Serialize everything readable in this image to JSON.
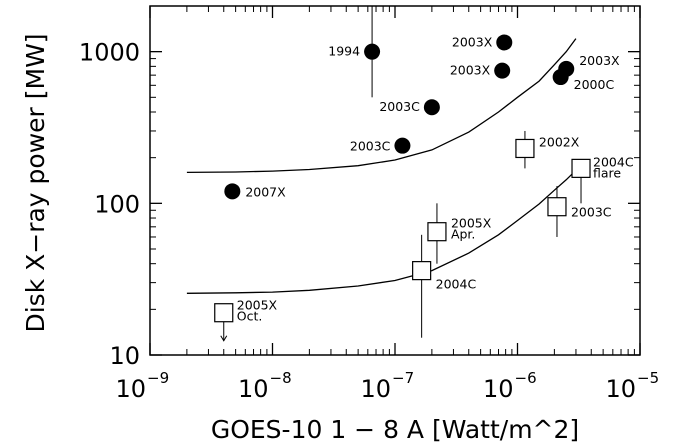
{
  "chart_data": {
    "type": "scatter",
    "title": "",
    "xlabel": "GOES-10 1 − 8 A [Watt/m^2]",
    "ylabel": "Disk X−ray power [MW]",
    "xscale": "log",
    "yscale": "log",
    "xlim": [
      1e-09,
      1e-05
    ],
    "ylim": [
      10,
      2000
    ],
    "x_ticks": [
      {
        "base": "10",
        "exp": "−9",
        "value": 1e-09
      },
      {
        "base": "10",
        "exp": "−8",
        "value": 1e-08
      },
      {
        "base": "10",
        "exp": "−7",
        "value": 1e-07
      },
      {
        "base": "10",
        "exp": "−6",
        "value": 1e-06
      },
      {
        "base": "10",
        "exp": "−5",
        "value": 1e-05
      }
    ],
    "y_ticks": [
      {
        "label": "10",
        "value": 10
      },
      {
        "label": "100",
        "value": 100
      },
      {
        "label": "1000",
        "value": 1000
      }
    ],
    "grid": false,
    "series": [
      {
        "marker": "filled-circle",
        "points": [
          {
            "x": 6.5e-08,
            "y": 1000,
            "label": "1994",
            "y_err": [
              500,
              2000
            ]
          },
          {
            "x": 7.8e-07,
            "y": 1150,
            "label": "2003X"
          },
          {
            "x": 7.5e-07,
            "y": 750,
            "label": "2003X"
          },
          {
            "x": 2.5e-06,
            "y": 770,
            "label": "2003X"
          },
          {
            "x": 2.25e-06,
            "y": 680,
            "label": "2000C"
          },
          {
            "x": 2e-07,
            "y": 430,
            "label": "2003C"
          },
          {
            "x": 1.15e-07,
            "y": 240,
            "label": "2003C"
          },
          {
            "x": 4.7e-09,
            "y": 120,
            "label": "2007X"
          }
        ]
      },
      {
        "marker": "open-square",
        "points": [
          {
            "x": 1.15e-06,
            "y": 230,
            "label": "2002X",
            "y_err": [
              170,
              300
            ]
          },
          {
            "x": 3.3e-06,
            "y": 170,
            "label": "2004C",
            "label2": "flare",
            "y_err": [
              100,
              170
            ]
          },
          {
            "x": 2.1e-06,
            "y": 95,
            "label": "2003C",
            "y_err": [
              60,
              130
            ]
          },
          {
            "x": 2.2e-07,
            "y": 65,
            "label": "2005X",
            "label2": "Apr.",
            "y_err": [
              40,
              100
            ]
          },
          {
            "x": 1.65e-07,
            "y": 36,
            "label": "2004C",
            "y_err": [
              13,
              62
            ]
          },
          {
            "x": 4e-09,
            "y": 19,
            "label": "2005X",
            "label2": "Oct.",
            "upper_limit": true
          }
        ]
      }
    ],
    "curves": [
      {
        "x": [
          2e-09,
          5e-09,
          1e-08,
          2e-08,
          5e-08,
          1e-07,
          2e-07,
          4e-07,
          7e-07,
          1e-06,
          1.5e-06,
          2e-06,
          2.5e-06,
          3e-06
        ],
        "y": [
          160,
          161,
          163,
          167,
          177,
          193,
          225,
          295,
          400,
          500,
          640,
          820,
          1000,
          1220
        ]
      },
      {
        "x": [
          2e-09,
          5e-09,
          1e-08,
          2e-08,
          5e-08,
          1e-07,
          2e-07,
          4e-07,
          7e-07,
          1e-06,
          1.5e-06,
          2e-06,
          2.5e-06,
          3e-06,
          3.5e-06
        ],
        "y": [
          25.5,
          25.7,
          26,
          26.7,
          28.5,
          31,
          36,
          47,
          62,
          77,
          99,
          122,
          143,
          165,
          186
        ]
      }
    ]
  }
}
